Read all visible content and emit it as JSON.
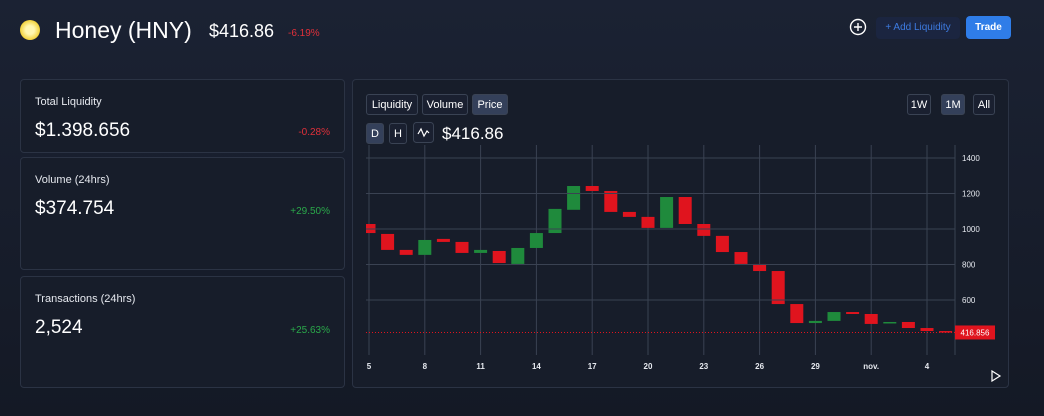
{
  "header": {
    "title": "Honey (HNY)",
    "price": "$416.86",
    "change": "-6.19%",
    "add_button": "+ Add Liquidity",
    "trade_button": "Trade"
  },
  "stats": [
    {
      "label": "Total Liquidity",
      "value": "$1.398.656",
      "change": "-0.28%"
    },
    {
      "label": "Volume (24hrs)",
      "value": "$374.754",
      "change": "+29.50%"
    },
    {
      "label": "Transactions (24hrs)",
      "value": "2,524",
      "change": "+25.63%"
    }
  ],
  "tabs": [
    "Liquidity",
    "Volume",
    "Price"
  ],
  "ranges": [
    "1W",
    "1M",
    "All"
  ],
  "intervals": [
    "D",
    "H"
  ],
  "chart_data": {
    "type": "candlestick",
    "title": "$416.86",
    "categories": [
      "5",
      null,
      null,
      "8",
      null,
      null,
      "11",
      null,
      null,
      "14",
      null,
      null,
      "17",
      null,
      null,
      "20",
      null,
      null,
      "23",
      null,
      null,
      "26",
      null,
      null,
      "29",
      null,
      null,
      "nov.",
      null,
      null,
      "4",
      null
    ],
    "open": [
      1028,
      972,
      882,
      854,
      944,
      927,
      865,
      876,
      803,
      893,
      977,
      1108,
      1242,
      1214,
      1096,
      1068,
      1006,
      1180,
      1028,
      961,
      870,
      803,
      763,
      577,
      470,
      482,
      532,
      521,
      470,
      476,
      442,
      425
    ],
    "close": [
      977,
      882,
      854,
      938,
      927,
      865,
      882,
      808,
      893,
      977,
      1113,
      1242,
      1214,
      1096,
      1068,
      1006,
      1180,
      1028,
      961,
      870,
      803,
      763,
      577,
      470,
      482,
      532,
      521,
      465,
      476,
      442,
      425,
      417
    ],
    "up_color": "#1f8a3c",
    "down_color": "#e0141e",
    "ylim": [
      290,
      1473
    ],
    "yticks": [
      600,
      800,
      1000,
      1200,
      1400
    ],
    "grid": true,
    "last_price": 416.856
  }
}
